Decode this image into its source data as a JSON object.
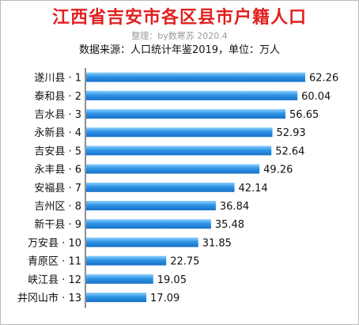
{
  "header": {
    "title": "江西省吉安市各区县市户籍人口",
    "subtitle": "整理：by数寒苏 2020.4",
    "source": "数据来源：人口统计年鉴2019，单位：万人"
  },
  "chart_data": {
    "type": "bar",
    "orientation": "horizontal",
    "title": "江西省吉安市各区县市户籍人口",
    "subtitle": "整理：by数寒苏 2020.4",
    "unit": "万人",
    "categories": [
      "遂川县 · 1",
      "泰和县 · 2",
      "吉水县 · 3",
      "永新县 · 4",
      "吉安县 · 5",
      "永丰县 · 6",
      "安福县 · 7",
      "吉州区 · 8",
      "新干县 · 9",
      "万安县 · 10",
      "青原区 · 11",
      "峡江县 · 12",
      "井冈山市 · 13"
    ],
    "values": [
      62.26,
      60.04,
      56.65,
      52.93,
      52.64,
      49.26,
      42.14,
      36.84,
      35.48,
      31.85,
      22.75,
      19.05,
      17.09
    ],
    "value_labels": [
      "62.26",
      "60.04",
      "56.65",
      "52.93",
      "52.64",
      "49.26",
      "42.14",
      "36.84",
      "35.48",
      "31.85",
      "22.75",
      "19.05",
      "17.09"
    ],
    "xlim": [
      0,
      62.26
    ],
    "grid": false,
    "legend": "none",
    "bar_color": "#2f95e5"
  }
}
